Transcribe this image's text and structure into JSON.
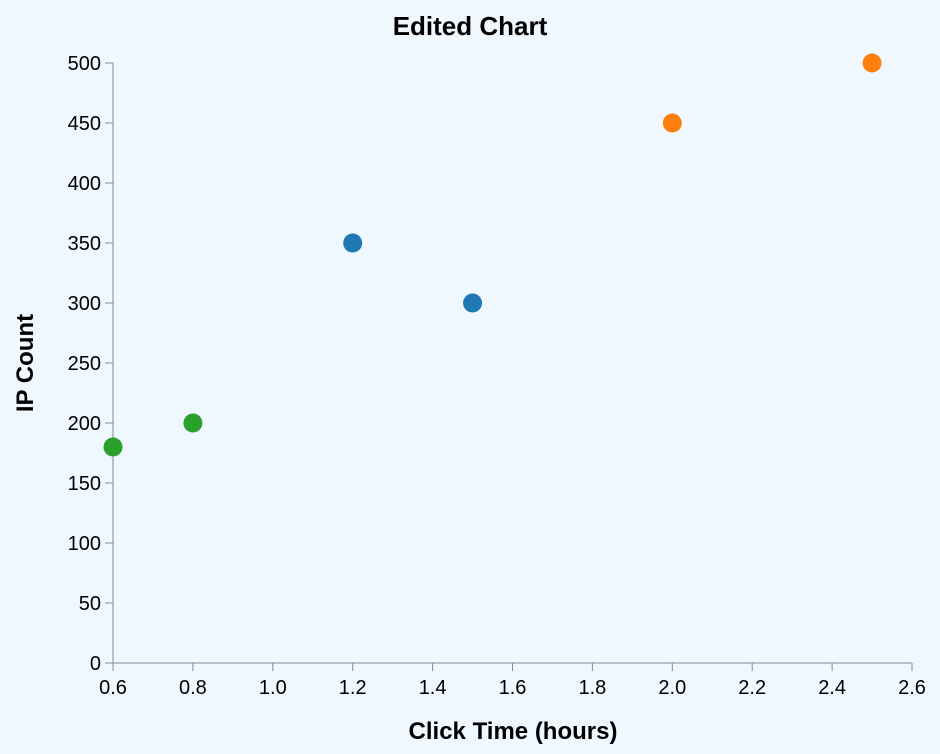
{
  "chart_data": {
    "type": "scatter",
    "title": "Edited Chart",
    "xlabel": "Click Time (hours)",
    "ylabel": "IP Count",
    "xlim": [
      0.6,
      2.6
    ],
    "ylim": [
      0,
      500
    ],
    "x_ticks": [
      0.6,
      0.8,
      1.0,
      1.2,
      1.4,
      1.6,
      1.8,
      2.0,
      2.2,
      2.4,
      2.6
    ],
    "x_tick_labels": [
      "0.6",
      "0.8",
      "1.0",
      "1.2",
      "1.4",
      "1.6",
      "1.8",
      "2.0",
      "2.2",
      "2.4",
      "2.6"
    ],
    "y_ticks": [
      0,
      50,
      100,
      150,
      200,
      250,
      300,
      350,
      400,
      450,
      500
    ],
    "y_tick_labels": [
      "0",
      "50",
      "100",
      "150",
      "200",
      "250",
      "300",
      "350",
      "400",
      "450",
      "500"
    ],
    "grid": false,
    "series": [
      {
        "color": "#2ca02c",
        "points": [
          {
            "x": 0.6,
            "y": 180
          },
          {
            "x": 0.8,
            "y": 200
          }
        ]
      },
      {
        "color": "#1f77b4",
        "points": [
          {
            "x": 1.2,
            "y": 350
          },
          {
            "x": 1.5,
            "y": 300
          }
        ]
      },
      {
        "color": "#ff7f0e",
        "points": [
          {
            "x": 2.0,
            "y": 450
          },
          {
            "x": 2.5,
            "y": 500
          }
        ]
      }
    ]
  },
  "colors": {
    "background": "#f0f8ff",
    "axis": "#888888",
    "text": "#000000"
  }
}
